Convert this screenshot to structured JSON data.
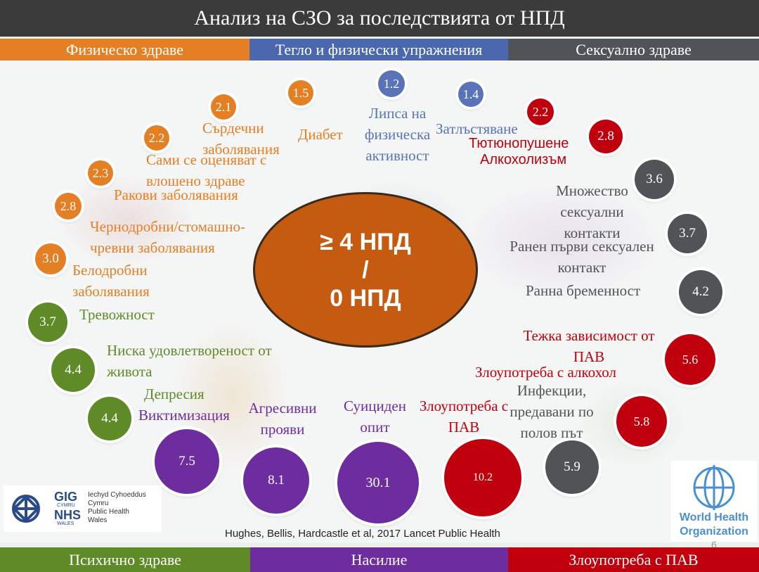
{
  "title": "Анализ на СЗО за последствията  от НПД",
  "top_bands": [
    {
      "label": "Физическо здраве",
      "color": "#e57f24"
    },
    {
      "label": "Тегло и физически упражнения",
      "color": "#4a67b0"
    },
    {
      "label": "Сексуално здраве",
      "color": "#515457"
    }
  ],
  "bottom_bands": [
    {
      "label": "Психично здраве",
      "color": "#5e8a27"
    },
    {
      "label": "Насилие",
      "color": "#6e2d9e"
    },
    {
      "label": "Злоупотреба с ПАВ",
      "color": "#c0000c"
    }
  ],
  "center": {
    "line1": "≥ 4 НПД",
    "line2": "/",
    "line3": "0 НПД"
  },
  "outcomes": {
    "physical": [
      {
        "value": "1.5",
        "label": "Диабет"
      },
      {
        "value": "2.1",
        "label": "Сърдечни заболявания"
      },
      {
        "value": "2.2",
        "label": "Сами се оценяват с влошено здраве"
      },
      {
        "value": "2.3",
        "label": "Ракови заболявания"
      },
      {
        "value": "2.8",
        "label": "Чернодробни/стомашно-чревни заболявания"
      },
      {
        "value": "3.0",
        "label": "Белодробни заболявания"
      }
    ],
    "weight": [
      {
        "value": "1.2",
        "label": "Липса на физическа активност"
      },
      {
        "value": "1.4",
        "label": "Затлъстяване"
      }
    ],
    "substance": [
      {
        "value": "2.2",
        "label": "Тютюнопушене"
      },
      {
        "value": "2.8",
        "label": "Алкохолизъм"
      },
      {
        "value": "5.6",
        "label": "Тежка зависимост от ПАВ"
      },
      {
        "value": "5.8",
        "label": "Злоупотреба с алкохол"
      },
      {
        "value": "10.2",
        "label": "Злоупотреба с ПАВ"
      }
    ],
    "sexual": [
      {
        "value": "3.6",
        "label": "Множество сексуални контакти"
      },
      {
        "value": "3.7",
        "label": "Ранен първи сексуален контакт"
      },
      {
        "value": "4.2",
        "label": "Ранна бременност"
      },
      {
        "value": "5.9",
        "label": "Инфекции, предавани по полов път"
      }
    ],
    "mental": [
      {
        "value": "3.7",
        "label": "Тревожност"
      },
      {
        "value": "4.4",
        "label": "Ниска удовлетвореност от живота"
      },
      {
        "value": "4.4",
        "label": "Депресия"
      }
    ],
    "violence": [
      {
        "value": "7.5",
        "label": "Виктимизация"
      },
      {
        "value": "8.1",
        "label": "Агресивни прояви"
      },
      {
        "value": "30.1",
        "label": "Суициден опит"
      }
    ]
  },
  "logos": {
    "nhs_gig": "GIG",
    "nhs_cymru": "CYMRU",
    "nhs_nhs": "NHS",
    "nhs_wales": "WALES",
    "nhs_text1": "Iechyd Cyhoeddus",
    "nhs_text2": "Cymru",
    "nhs_text3": "Public Health",
    "nhs_text4": "Wales",
    "who_line1": "World Health",
    "who_line2": "Organization"
  },
  "citation": "Hughes, Bellis, Hardcastle et al, 2017 Lancet Public Health",
  "page_number": "6"
}
